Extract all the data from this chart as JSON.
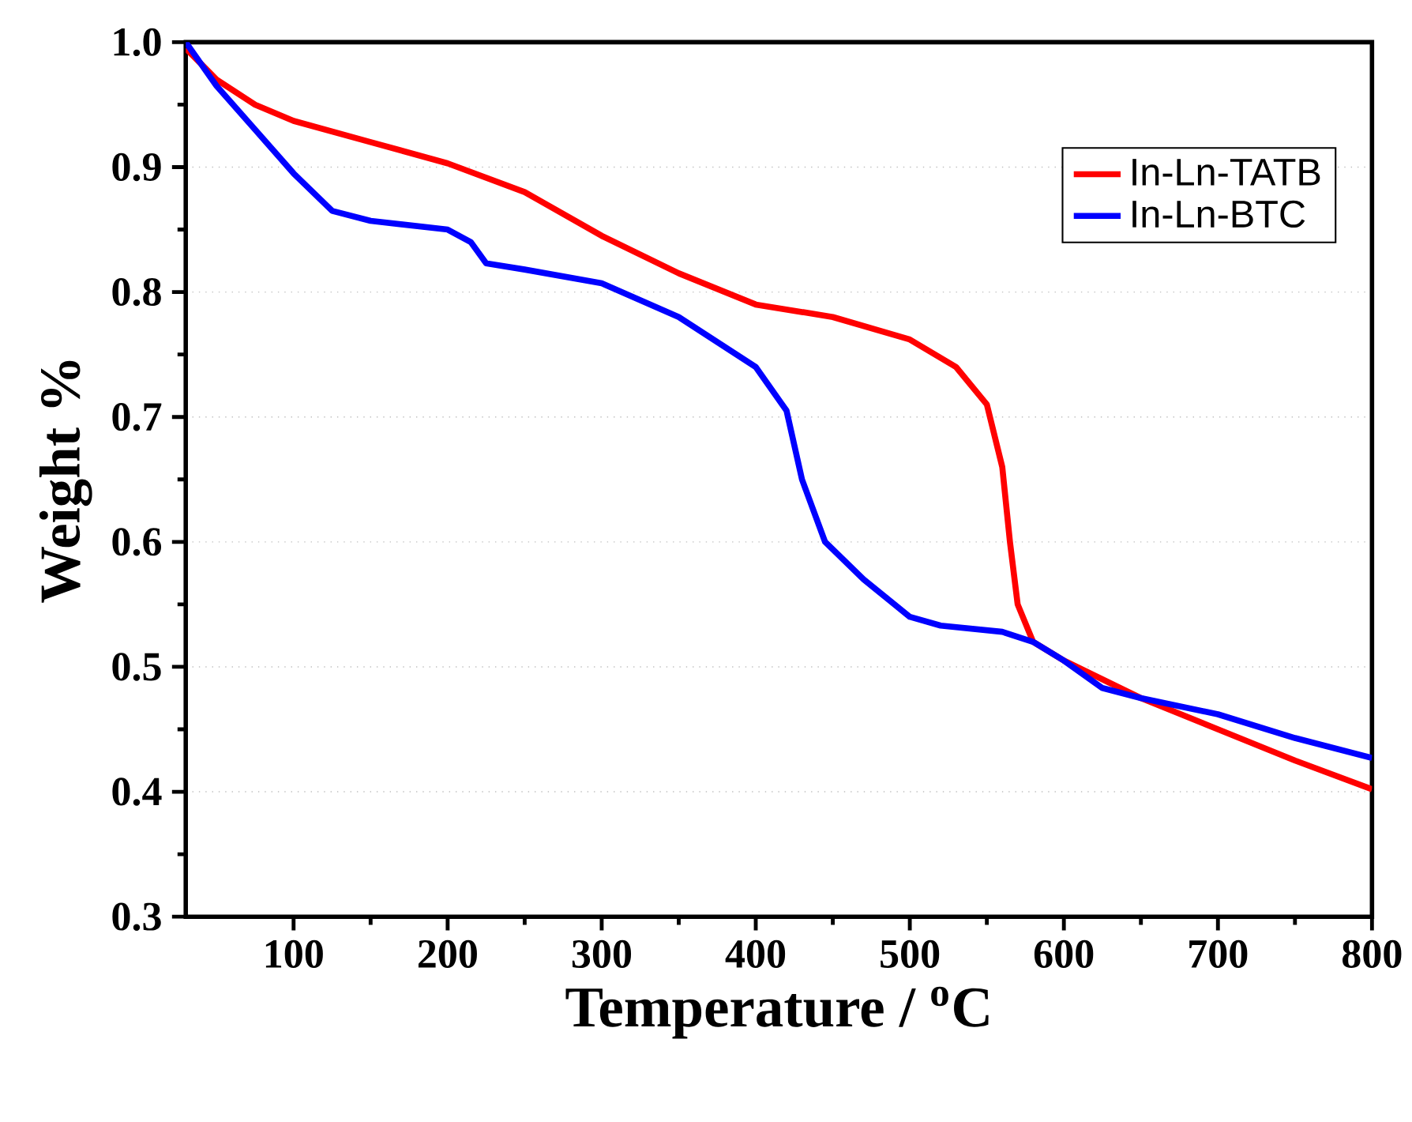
{
  "chart_data": {
    "type": "line",
    "xlabel": "Temperature / $^{o}$C",
    "ylabel": "Weight %",
    "xlim": [
      30,
      800
    ],
    "xticks": [
      100,
      200,
      300,
      400,
      500,
      600,
      700,
      800
    ],
    "ylim": [
      0.3,
      1.0
    ],
    "yticks": [
      0.3,
      0.4,
      0.5,
      0.6,
      0.7,
      0.8,
      0.9,
      {
        "value": 1.0,
        "label": "1.0"
      }
    ],
    "grid": "y",
    "legend": "top right",
    "marker": "none",
    "line_style": "solid",
    "series": [
      {
        "name": "In-Ln-TATB",
        "color": "#ff0000",
        "x": [
          30,
          50,
          75,
          100,
          150,
          200,
          250,
          300,
          350,
          400,
          450,
          500,
          530,
          550,
          560,
          565,
          570,
          580,
          600,
          650,
          700,
          750,
          800
        ],
        "values": [
          0.995,
          0.97,
          0.95,
          0.937,
          0.92,
          0.903,
          0.88,
          0.845,
          0.815,
          0.79,
          0.78,
          0.762,
          0.74,
          0.71,
          0.66,
          0.6,
          0.55,
          0.52,
          0.505,
          0.475,
          0.45,
          0.425,
          0.402
        ]
      },
      {
        "name": "In-Ln-BTC",
        "color": "#0000ff",
        "x": [
          30,
          50,
          75,
          100,
          125,
          150,
          200,
          215,
          225,
          250,
          300,
          350,
          400,
          420,
          430,
          445,
          470,
          500,
          520,
          560,
          580,
          600,
          625,
          650,
          700,
          750,
          800
        ],
        "values": [
          1.0,
          0.965,
          0.93,
          0.895,
          0.865,
          0.857,
          0.85,
          0.84,
          0.823,
          0.818,
          0.807,
          0.78,
          0.74,
          0.705,
          0.65,
          0.6,
          0.57,
          0.54,
          0.533,
          0.528,
          0.52,
          0.505,
          0.483,
          0.475,
          0.462,
          0.443,
          0.427
        ]
      }
    ]
  }
}
